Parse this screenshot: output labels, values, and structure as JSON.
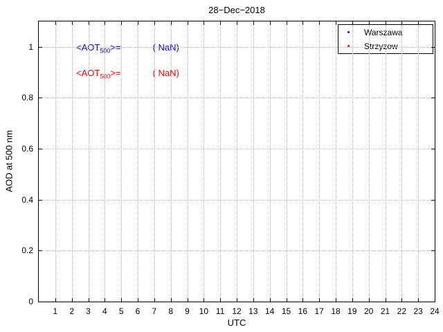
{
  "chart_data": {
    "type": "scatter",
    "title": "28−Dec−2018",
    "xlabel": "UTC",
    "ylabel": "AOD at 500 nm",
    "xlim": [
      0,
      24
    ],
    "ylim": [
      0,
      1.1
    ],
    "x_ticks": [
      1,
      2,
      3,
      4,
      5,
      6,
      7,
      8,
      9,
      10,
      11,
      12,
      13,
      14,
      15,
      16,
      17,
      18,
      19,
      20,
      21,
      22,
      23,
      24
    ],
    "y_ticks": [
      0,
      0.2,
      0.4,
      0.6,
      0.8,
      1
    ],
    "grid": true,
    "legend_position": "top-right",
    "series": [
      {
        "name": "Warszawa",
        "color": "#0000ff",
        "marker": "dot",
        "x": [],
        "y": []
      },
      {
        "name": "Strzyzow",
        "color": "#ff0000",
        "marker": "dot",
        "x": [],
        "y": []
      }
    ],
    "annotations": [
      {
        "prefix": "<AOT",
        "subscript": "500",
        "suffix": ">=",
        "value": "( NaN)",
        "color": "#0000ff"
      },
      {
        "prefix": "<AOT",
        "subscript": "500",
        "suffix": ">=",
        "value": "( NaN)",
        "color": "#ff0000"
      }
    ]
  },
  "legend": {
    "items": [
      {
        "label": "Warszawa",
        "color": "#0000ff"
      },
      {
        "label": "Strzyzow",
        "color": "#ff0000"
      }
    ]
  }
}
